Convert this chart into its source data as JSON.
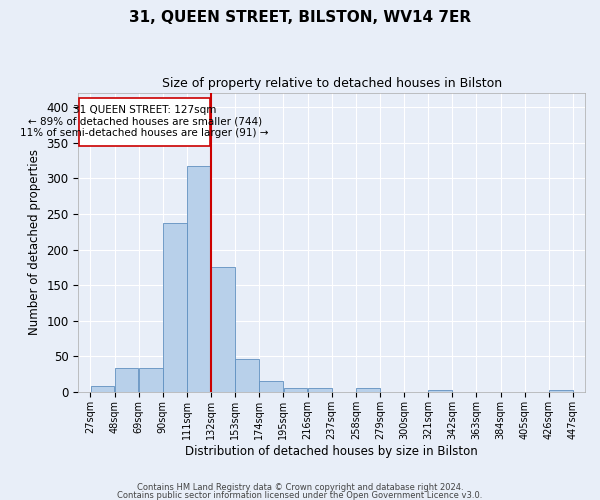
{
  "title": "31, QUEEN STREET, BILSTON, WV14 7ER",
  "subtitle": "Size of property relative to detached houses in Bilston",
  "xlabel": "Distribution of detached houses by size in Bilston",
  "ylabel": "Number of detached properties",
  "footer_line1": "Contains HM Land Registry data © Crown copyright and database right 2024.",
  "footer_line2": "Contains public sector information licensed under the Open Government Licence v3.0.",
  "property_label": "31 QUEEN STREET: 127sqm",
  "annotation_line2": "← 89% of detached houses are smaller (744)",
  "annotation_line3": "11% of semi-detached houses are larger (91) →",
  "property_size": 127,
  "bin_edges": [
    27,
    48,
    69,
    90,
    111,
    132,
    153,
    174,
    195,
    216,
    237,
    258,
    279,
    300,
    321,
    342,
    363,
    384,
    405,
    426,
    447
  ],
  "bar_heights": [
    8,
    33,
    33,
    238,
    318,
    175,
    46,
    15,
    5,
    5,
    0,
    5,
    0,
    0,
    3,
    0,
    0,
    0,
    0,
    3
  ],
  "bar_color": "#b8d0ea",
  "bar_edge_color": "#6090c0",
  "vline_color": "#cc0000",
  "vline_x": 132,
  "annotation_box_color": "#cc0000",
  "background_color": "#e8eef8",
  "grid_color": "#ffffff",
  "ylim": [
    0,
    420
  ],
  "yticks": [
    0,
    50,
    100,
    150,
    200,
    250,
    300,
    350,
    400
  ]
}
